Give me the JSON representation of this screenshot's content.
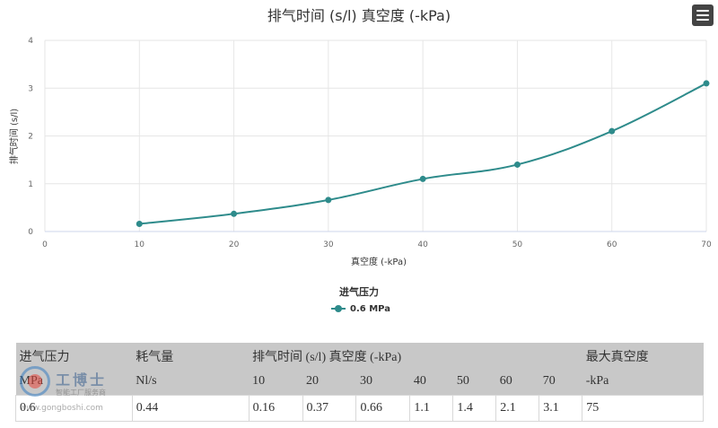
{
  "chart_data": {
    "type": "line",
    "title": "排气时间 (s/l) 真空度 (-kPa)",
    "xlabel": "真空度 (-kPa)",
    "ylabel": "排气时间 (s/l)",
    "xlim": [
      0,
      70
    ],
    "ylim": [
      0,
      4
    ],
    "xticks": [
      0,
      10,
      20,
      30,
      40,
      50,
      60,
      70
    ],
    "yticks": [
      0,
      1,
      2,
      3,
      4
    ],
    "grid": true,
    "legend_title": "进气压力",
    "legend_position": "bottom-center",
    "series": [
      {
        "name": "0.6 MPa",
        "color": "#2e8b8b",
        "x": [
          10,
          20,
          30,
          40,
          50,
          60,
          70
        ],
        "y": [
          0.16,
          0.37,
          0.66,
          1.1,
          1.4,
          2.1,
          3.1
        ]
      }
    ]
  },
  "menu_icon": "hamburger-menu-icon",
  "table": {
    "header_row1": [
      "进气压力",
      "耗气量",
      "排气时间 (s/l) 真空度 (-kPa)",
      "最大真空度"
    ],
    "header_row2": [
      "MPa",
      "Nl/s",
      "10",
      "20",
      "30",
      "40",
      "50",
      "60",
      "70",
      "-kPa"
    ],
    "rows": [
      [
        "0.6",
        "0.44",
        "0.16",
        "0.37",
        "0.66",
        "1.1",
        "1.4",
        "2.1",
        "3.1",
        "75"
      ]
    ]
  },
  "watermark": {
    "name": "工博士",
    "sub": "智能工厂服务商",
    "url": "www.gongboshi.com"
  }
}
